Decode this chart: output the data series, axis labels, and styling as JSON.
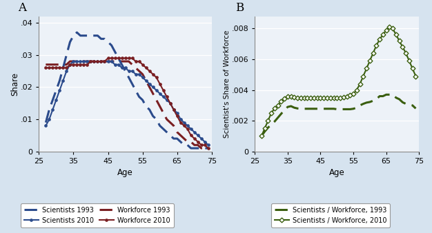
{
  "background_color": "#d6e3ef",
  "plot_bg_color": "#edf2f8",
  "panel_A": {
    "title": "A",
    "xlabel": "Age",
    "ylabel": "Share",
    "xlim": [
      25,
      75
    ],
    "ylim": [
      0,
      0.042
    ],
    "yticks": [
      0,
      0.01,
      0.02,
      0.03,
      0.04
    ],
    "xticks": [
      25,
      35,
      45,
      55,
      65,
      75
    ],
    "blue": "#2b4b8c",
    "red": "#7a1f22"
  },
  "panel_B": {
    "title": "B",
    "xlabel": "Age",
    "ylabel": "Scientist's Share of Workforce",
    "xlim": [
      25,
      75
    ],
    "ylim": [
      0,
      0.0088
    ],
    "yticks": [
      0,
      0.002,
      0.004,
      0.006,
      0.008
    ],
    "xticks": [
      25,
      35,
      45,
      55,
      65,
      75
    ],
    "green": "#3a5e0f"
  },
  "scientists_1993_ages": [
    27,
    28,
    29,
    30,
    31,
    32,
    33,
    34,
    35,
    36,
    37,
    38,
    39,
    40,
    41,
    42,
    43,
    44,
    45,
    46,
    47,
    48,
    49,
    50,
    51,
    52,
    53,
    54,
    55,
    56,
    57,
    58,
    59,
    60,
    61,
    62,
    63,
    64,
    65,
    66,
    67,
    68,
    69,
    70,
    71,
    72,
    73,
    74
  ],
  "scientists_1993_vals": [
    0.009,
    0.013,
    0.016,
    0.019,
    0.022,
    0.026,
    0.03,
    0.034,
    0.036,
    0.037,
    0.036,
    0.036,
    0.036,
    0.036,
    0.036,
    0.036,
    0.035,
    0.035,
    0.034,
    0.033,
    0.031,
    0.029,
    0.027,
    0.025,
    0.023,
    0.021,
    0.019,
    0.017,
    0.016,
    0.014,
    0.013,
    0.011,
    0.01,
    0.008,
    0.007,
    0.006,
    0.005,
    0.004,
    0.004,
    0.003,
    0.002,
    0.002,
    0.001,
    0.001,
    0.001,
    0.001,
    0.001,
    0.001
  ],
  "scientists_2010_ages": [
    27,
    28,
    29,
    30,
    31,
    32,
    33,
    34,
    35,
    36,
    37,
    38,
    39,
    40,
    41,
    42,
    43,
    44,
    45,
    46,
    47,
    48,
    49,
    50,
    51,
    52,
    53,
    54,
    55,
    56,
    57,
    58,
    59,
    60,
    61,
    62,
    63,
    64,
    65,
    66,
    67,
    68,
    69,
    70,
    71,
    72,
    73,
    74
  ],
  "scientists_2010_vals": [
    0.008,
    0.01,
    0.013,
    0.016,
    0.019,
    0.022,
    0.025,
    0.027,
    0.028,
    0.028,
    0.028,
    0.028,
    0.028,
    0.028,
    0.028,
    0.028,
    0.028,
    0.028,
    0.028,
    0.028,
    0.027,
    0.027,
    0.026,
    0.026,
    0.025,
    0.025,
    0.024,
    0.024,
    0.023,
    0.022,
    0.021,
    0.02,
    0.019,
    0.018,
    0.017,
    0.016,
    0.015,
    0.013,
    0.012,
    0.01,
    0.009,
    0.008,
    0.007,
    0.006,
    0.005,
    0.004,
    0.003,
    0.002
  ],
  "workforce_1993_ages": [
    27,
    28,
    29,
    30,
    31,
    32,
    33,
    34,
    35,
    36,
    37,
    38,
    39,
    40,
    41,
    42,
    43,
    44,
    45,
    46,
    47,
    48,
    49,
    50,
    51,
    52,
    53,
    54,
    55,
    56,
    57,
    58,
    59,
    60,
    61,
    62,
    63,
    64,
    65,
    66,
    67,
    68,
    69,
    70,
    71,
    72,
    73,
    74
  ],
  "workforce_1993_vals": [
    0.027,
    0.027,
    0.027,
    0.027,
    0.027,
    0.027,
    0.027,
    0.028,
    0.028,
    0.028,
    0.028,
    0.028,
    0.028,
    0.028,
    0.028,
    0.028,
    0.028,
    0.028,
    0.028,
    0.028,
    0.028,
    0.028,
    0.028,
    0.028,
    0.028,
    0.027,
    0.026,
    0.025,
    0.024,
    0.022,
    0.02,
    0.018,
    0.016,
    0.014,
    0.012,
    0.01,
    0.009,
    0.008,
    0.006,
    0.005,
    0.004,
    0.003,
    0.003,
    0.002,
    0.002,
    0.001,
    0.001,
    0.001
  ],
  "workforce_2010_ages": [
    27,
    28,
    29,
    30,
    31,
    32,
    33,
    34,
    35,
    36,
    37,
    38,
    39,
    40,
    41,
    42,
    43,
    44,
    45,
    46,
    47,
    48,
    49,
    50,
    51,
    52,
    53,
    54,
    55,
    56,
    57,
    58,
    59,
    60,
    61,
    62,
    63,
    64,
    65,
    66,
    67,
    68,
    69,
    70,
    71,
    72,
    73,
    74
  ],
  "workforce_2010_vals": [
    0.026,
    0.026,
    0.026,
    0.026,
    0.026,
    0.026,
    0.026,
    0.027,
    0.027,
    0.027,
    0.027,
    0.027,
    0.027,
    0.028,
    0.028,
    0.028,
    0.028,
    0.028,
    0.029,
    0.029,
    0.029,
    0.029,
    0.029,
    0.029,
    0.029,
    0.029,
    0.028,
    0.028,
    0.027,
    0.026,
    0.025,
    0.024,
    0.023,
    0.021,
    0.019,
    0.017,
    0.015,
    0.013,
    0.011,
    0.009,
    0.008,
    0.007,
    0.005,
    0.004,
    0.003,
    0.002,
    0.002,
    0.001
  ],
  "ratio_1993_ages": [
    27,
    28,
    29,
    30,
    31,
    32,
    33,
    34,
    35,
    36,
    37,
    38,
    39,
    40,
    41,
    42,
    43,
    44,
    45,
    46,
    47,
    48,
    49,
    50,
    51,
    52,
    53,
    54,
    55,
    56,
    57,
    58,
    59,
    60,
    61,
    62,
    63,
    64,
    65,
    66,
    67,
    68,
    69,
    70,
    71,
    72,
    73,
    74
  ],
  "ratio_1993_vals": [
    0.001,
    0.0013,
    0.00155,
    0.00175,
    0.00195,
    0.0022,
    0.00245,
    0.0027,
    0.0029,
    0.00295,
    0.00285,
    0.0028,
    0.00278,
    0.00278,
    0.00278,
    0.00278,
    0.00278,
    0.00278,
    0.00278,
    0.00278,
    0.00278,
    0.00278,
    0.00278,
    0.00275,
    0.00275,
    0.00275,
    0.00275,
    0.00275,
    0.00278,
    0.00285,
    0.003,
    0.0031,
    0.00318,
    0.00322,
    0.0033,
    0.0034,
    0.0036,
    0.0036,
    0.0037,
    0.0037,
    0.0037,
    0.0035,
    0.0034,
    0.0032,
    0.0031,
    0.00305,
    0.003,
    0.0028
  ],
  "ratio_2010_ages": [
    27,
    28,
    29,
    30,
    31,
    32,
    33,
    34,
    35,
    36,
    37,
    38,
    39,
    40,
    41,
    42,
    43,
    44,
    45,
    46,
    47,
    48,
    49,
    50,
    51,
    52,
    53,
    54,
    55,
    56,
    57,
    58,
    59,
    60,
    61,
    62,
    63,
    64,
    65,
    66,
    67,
    68,
    69,
    70,
    71,
    72,
    73,
    74
  ],
  "ratio_2010_vals": [
    0.001,
    0.0015,
    0.002,
    0.0025,
    0.0028,
    0.003,
    0.00325,
    0.00345,
    0.0036,
    0.0036,
    0.00355,
    0.0035,
    0.0035,
    0.0035,
    0.0035,
    0.0035,
    0.0035,
    0.0035,
    0.0035,
    0.0035,
    0.0035,
    0.0035,
    0.0035,
    0.0035,
    0.0035,
    0.00355,
    0.0036,
    0.00365,
    0.00375,
    0.004,
    0.0044,
    0.0049,
    0.0054,
    0.0059,
    0.0064,
    0.0069,
    0.0073,
    0.0076,
    0.0079,
    0.0081,
    0.008,
    0.0076,
    0.0072,
    0.0068,
    0.0064,
    0.0059,
    0.0054,
    0.0049
  ]
}
